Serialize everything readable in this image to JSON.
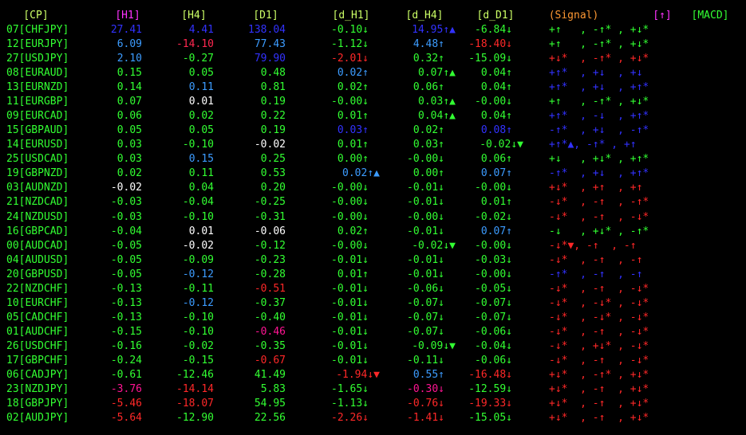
{
  "header": {
    "labels": [
      "[CP]",
      "[H1]",
      "[H4]",
      "[D1]",
      "[d_H1]",
      "[d_H4]",
      "[d_D1]",
      "(Signal)",
      "[↑]",
      "[MACD]"
    ],
    "colors": [
      "#ccff66",
      "#ff33ff",
      "#ccff66",
      "#ccff66",
      "#ccff66",
      "#ccff66",
      "#ccff66",
      "#ff9933",
      "#ff33ff",
      "#33ff33"
    ]
  },
  "rows": [
    {
      "cells": [
        "07[CHFJPY]",
        "27.41",
        "4.41",
        "138.04",
        "-0.10↓",
        "14.95↑▲",
        "-6.84↓",
        "+↑   , -↑* , +↓*"
      ],
      "colors": [
        "#32ff32",
        "#3232ff",
        "#3232ff",
        "#3232ff",
        "#32ff32",
        "#3232ff",
        "#32ff32",
        "#32ff32"
      ]
    },
    {
      "cells": [
        "12[EURJPY]",
        "6.09",
        "-14.10",
        "77.43",
        "-1.12↓",
        "4.48↑",
        "-18.40↓",
        "+↑   , -↑* , +↓*"
      ],
      "colors": [
        "#32ff32",
        "#3c9cff",
        "#ff2850",
        "#3c9cff",
        "#32ff32",
        "#3c9cff",
        "#ff2828",
        "#32ff32"
      ]
    },
    {
      "cells": [
        "27[USDJPY]",
        "2.10",
        "-0.27",
        "79.90",
        "-2.01↓",
        "0.32↑",
        "-15.09↓",
        "+↓*  , -↑* , +↓*"
      ],
      "colors": [
        "#32ff32",
        "#3c9cff",
        "#32ff32",
        "#3232ff",
        "#ff2828",
        "#32ff32",
        "#32ff32",
        "#ff2828"
      ]
    },
    {
      "cells": [
        "08[EURAUD]",
        "0.15",
        "0.05",
        "0.48",
        "0.02↑",
        "0.07↑▲",
        "0.04↑",
        "+↑*  , +↓  , +↓"
      ],
      "colors": [
        "#32ff32",
        "#32ff32",
        "#32ff32",
        "#32ff32",
        "#3c9cff",
        "#32ff32",
        "#32ff32",
        "#3232ff"
      ]
    },
    {
      "cells": [
        "13[EURNZD]",
        "0.14",
        "0.11",
        "0.81",
        "0.02↑",
        "0.06↑",
        "0.04↑",
        "+↑*  , +↓  , +↑*"
      ],
      "colors": [
        "#32ff32",
        "#32ff32",
        "#3c9cff",
        "#32ff32",
        "#32ff32",
        "#32ff32",
        "#32ff32",
        "#3232ff"
      ]
    },
    {
      "cells": [
        "11[EURGBP]",
        "0.07",
        "0.01",
        "0.19",
        "-0.00↓",
        "0.03↑▲",
        "-0.00↓",
        "+↑   , -↑* , +↓*"
      ],
      "colors": [
        "#32ff32",
        "#32ff32",
        "#ffffff",
        "#32ff32",
        "#32ff32",
        "#32ff32",
        "#32ff32",
        "#32ff32"
      ]
    },
    {
      "cells": [
        "09[EURCAD]",
        "0.06",
        "0.02",
        "0.22",
        "0.01↑",
        "0.04↑▲",
        "0.04↑",
        "+↑*  , -↓  , +↑*"
      ],
      "colors": [
        "#32ff32",
        "#32ff32",
        "#32ff32",
        "#32ff32",
        "#32ff32",
        "#32ff32",
        "#32ff32",
        "#3232ff"
      ]
    },
    {
      "cells": [
        "15[GBPAUD]",
        "0.05",
        "0.05",
        "0.19",
        "0.03↑",
        "0.02↑",
        "0.08↑",
        "-↑*  , +↓  , -↑*"
      ],
      "colors": [
        "#32ff32",
        "#32ff32",
        "#32ff32",
        "#32ff32",
        "#3232ff",
        "#32ff32",
        "#3232ff",
        "#3232ff"
      ]
    },
    {
      "cells": [
        "14[EURUSD]",
        "0.03",
        "-0.10",
        "-0.02",
        "0.01↑",
        "0.03↑",
        "-0.02↓▼",
        "+↑*▲, -↑* , +↑"
      ],
      "colors": [
        "#32ff32",
        "#32ff32",
        "#32ff32",
        "#ffffff",
        "#32ff32",
        "#32ff32",
        "#32ff32",
        "#3232ff"
      ]
    },
    {
      "cells": [
        "25[USDCAD]",
        "0.03",
        "0.15",
        "0.25",
        "0.00↑",
        "-0.00↓",
        "0.06↑",
        "+↓   , +↓* , +↑*"
      ],
      "colors": [
        "#32ff32",
        "#32ff32",
        "#3c9cff",
        "#32ff32",
        "#32ff32",
        "#32ff32",
        "#32ff32",
        "#32ff32"
      ]
    },
    {
      "cells": [
        "19[GBPNZD]",
        "0.02",
        "0.11",
        "0.53",
        "0.02↑▲",
        "0.00↑",
        "0.07↑",
        "-↑*  , +↓  , +↑*"
      ],
      "colors": [
        "#32ff32",
        "#32ff32",
        "#32ff32",
        "#32ff32",
        "#3c9cff",
        "#32ff32",
        "#3c9cff",
        "#3232ff"
      ]
    },
    {
      "cells": [
        "03[AUDNZD]",
        "-0.02",
        "0.04",
        "0.20",
        "-0.00↓",
        "-0.01↓",
        "-0.00↓",
        "+↓*  , +↑  , +↑"
      ],
      "colors": [
        "#32ff32",
        "#ffffff",
        "#32ff32",
        "#32ff32",
        "#32ff32",
        "#32ff32",
        "#32ff32",
        "#ff2828"
      ]
    },
    {
      "cells": [
        "21[NZDCAD]",
        "-0.03",
        "-0.04",
        "-0.25",
        "-0.00↓",
        "-0.01↓",
        "0.01↑",
        "-↓*  , -↑  , -↑*"
      ],
      "colors": [
        "#32ff32",
        "#32ff32",
        "#32ff32",
        "#32ff32",
        "#32ff32",
        "#32ff32",
        "#32ff32",
        "#ff2828"
      ]
    },
    {
      "cells": [
        "24[NZDUSD]",
        "-0.03",
        "-0.10",
        "-0.31",
        "-0.00↓",
        "-0.00↓",
        "-0.02↓",
        "-↓*  , -↑  , -↓*"
      ],
      "colors": [
        "#32ff32",
        "#32ff32",
        "#32ff32",
        "#32ff32",
        "#32ff32",
        "#32ff32",
        "#32ff32",
        "#ff2828"
      ]
    },
    {
      "cells": [
        "16[GBPCAD]",
        "-0.04",
        "0.01",
        "-0.06",
        "0.02↑",
        "-0.01↓",
        "0.07↑",
        "-↓   , +↓* , -↑*"
      ],
      "colors": [
        "#32ff32",
        "#32ff32",
        "#ffffff",
        "#ffffff",
        "#32ff32",
        "#32ff32",
        "#3c9cff",
        "#32ff32"
      ]
    },
    {
      "cells": [
        "00[AUDCAD]",
        "-0.05",
        "-0.02",
        "-0.12",
        "-0.00↓",
        "-0.02↓▼",
        "-0.00↓",
        "-↓*▼, -↑  , -↑"
      ],
      "colors": [
        "#32ff32",
        "#32ff32",
        "#ffffff",
        "#32ff32",
        "#32ff32",
        "#32ff32",
        "#32ff32",
        "#ff2828"
      ]
    },
    {
      "cells": [
        "04[AUDUSD]",
        "-0.05",
        "-0.09",
        "-0.23",
        "-0.01↓",
        "-0.01↓",
        "-0.03↓",
        "-↓*  , -↑  , -↑"
      ],
      "colors": [
        "#32ff32",
        "#32ff32",
        "#32ff32",
        "#32ff32",
        "#32ff32",
        "#32ff32",
        "#32ff32",
        "#ff2828"
      ]
    },
    {
      "cells": [
        "20[GBPUSD]",
        "-0.05",
        "-0.12",
        "-0.28",
        "0.01↑",
        "-0.01↓",
        "-0.00↓",
        "-↑*  , -↑  , -↑"
      ],
      "colors": [
        "#32ff32",
        "#32ff32",
        "#3c9cff",
        "#32ff32",
        "#32ff32",
        "#32ff32",
        "#32ff32",
        "#3232ff"
      ]
    },
    {
      "cells": [
        "22[NZDCHF]",
        "-0.13",
        "-0.11",
        "-0.51",
        "-0.01↓",
        "-0.06↓",
        "-0.05↓",
        "-↓*  , -↑  , -↓*"
      ],
      "colors": [
        "#32ff32",
        "#32ff32",
        "#32ff32",
        "#ff2828",
        "#32ff32",
        "#32ff32",
        "#32ff32",
        "#ff2828"
      ]
    },
    {
      "cells": [
        "10[EURCHF]",
        "-0.13",
        "-0.12",
        "-0.37",
        "-0.01↓",
        "-0.07↓",
        "-0.07↓",
        "-↓*  , -↓* , -↓*"
      ],
      "colors": [
        "#32ff32",
        "#32ff32",
        "#3c9cff",
        "#32ff32",
        "#32ff32",
        "#32ff32",
        "#32ff32",
        "#ff2828"
      ]
    },
    {
      "cells": [
        "05[CADCHF]",
        "-0.13",
        "-0.10",
        "-0.40",
        "-0.01↓",
        "-0.07↓",
        "-0.07↓",
        "-↓*  , -↓* , -↓*"
      ],
      "colors": [
        "#32ff32",
        "#32ff32",
        "#32ff32",
        "#32ff32",
        "#32ff32",
        "#32ff32",
        "#32ff32",
        "#ff2828"
      ]
    },
    {
      "cells": [
        "01[AUDCHF]",
        "-0.15",
        "-0.10",
        "-0.46",
        "-0.01↓",
        "-0.07↓",
        "-0.06↓",
        "-↓*  , -↑  , -↓*"
      ],
      "colors": [
        "#32ff32",
        "#32ff32",
        "#32ff32",
        "#ff1493",
        "#32ff32",
        "#32ff32",
        "#32ff32",
        "#ff2828"
      ]
    },
    {
      "cells": [
        "26[USDCHF]",
        "-0.16",
        "-0.02",
        "-0.35",
        "-0.01↓",
        "-0.09↓▼",
        "-0.04↓",
        "-↓*  , +↓* , -↓*"
      ],
      "colors": [
        "#32ff32",
        "#32ff32",
        "#32ff32",
        "#32ff32",
        "#32ff32",
        "#32ff32",
        "#32ff32",
        "#ff2828"
      ]
    },
    {
      "cells": [
        "17[GBPCHF]",
        "-0.24",
        "-0.15",
        "-0.67",
        "-0.01↓",
        "-0.11↓",
        "-0.06↓",
        "-↓*  , -↑  , -↓*"
      ],
      "colors": [
        "#32ff32",
        "#32ff32",
        "#32ff32",
        "#ff2828",
        "#32ff32",
        "#32ff32",
        "#32ff32",
        "#ff2828"
      ]
    },
    {
      "cells": [
        "06[CADJPY]",
        "-0.61",
        "-12.46",
        "41.49",
        "-1.94↓▼",
        "0.55↑",
        "-16.48↓",
        "+↓*  , -↑* , +↓*"
      ],
      "colors": [
        "#32ff32",
        "#32ff32",
        "#32ff32",
        "#32ff32",
        "#ff2828",
        "#3c9cff",
        "#ff2828",
        "#ff2828"
      ]
    },
    {
      "cells": [
        "23[NZDJPY]",
        "-3.76",
        "-14.14",
        "5.83",
        "-1.65↓",
        "-0.30↓",
        "-12.59↓",
        "+↓*  , -↑  , +↓*"
      ],
      "colors": [
        "#32ff32",
        "#ff1493",
        "#ff2828",
        "#32ff32",
        "#32ff32",
        "#ff1493",
        "#32ff32",
        "#ff2828"
      ]
    },
    {
      "cells": [
        "18[GBPJPY]",
        "-5.46",
        "-18.07",
        "54.95",
        "-1.13↓",
        "-0.76↓",
        "-19.33↓",
        "+↓*  , -↑  , +↓*"
      ],
      "colors": [
        "#32ff32",
        "#ff2828",
        "#ff2828",
        "#32ff32",
        "#32ff32",
        "#ff2828",
        "#ff2828",
        "#ff2828"
      ]
    },
    {
      "cells": [
        "02[AUDJPY]",
        "-5.64",
        "-12.90",
        "22.56",
        "-2.26↓",
        "-1.41↓",
        "-15.05↓",
        "+↓*  , -↑  , +↓*"
      ],
      "colors": [
        "#32ff32",
        "#ff2828",
        "#32ff32",
        "#32ff32",
        "#ff2828",
        "#ff2828",
        "#32ff32",
        "#ff2828"
      ]
    }
  ]
}
